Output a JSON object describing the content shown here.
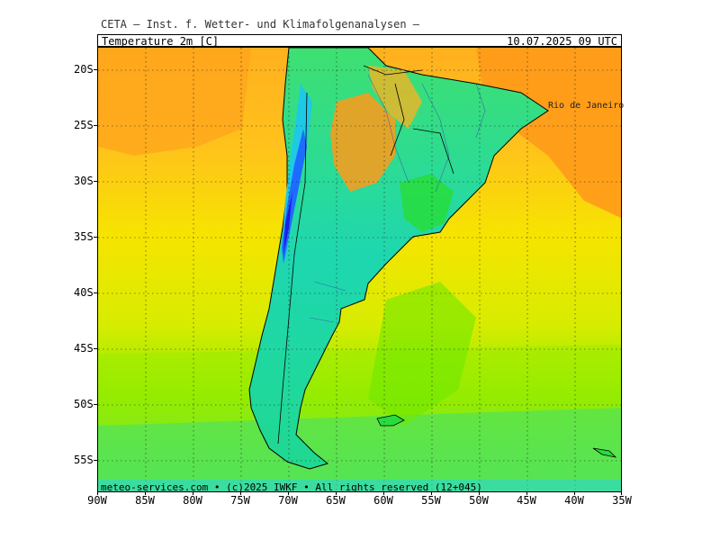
{
  "header": {
    "title": "CETA — Inst. f. Wetter- und Klimafolgenanalysen —"
  },
  "info_bar": {
    "parameter": "Temperature_2m_[C]",
    "datetime": "10.07.2025 09 UTC"
  },
  "map": {
    "latitude_labels": [
      "20S",
      "25S",
      "30S",
      "35S",
      "40S",
      "45S",
      "50S",
      "55S"
    ],
    "longitude_labels": [
      "90W",
      "85W",
      "80W",
      "75W",
      "70W",
      "65W",
      "60W",
      "55W",
      "50W",
      "45W",
      "40W",
      "35W"
    ],
    "city": "Rio de Janeiro",
    "colors": {
      "warm": "#ff9a1a",
      "orange": "#ffb01e",
      "yellow": "#f6e400",
      "yellow_green": "#c8ef00",
      "green": "#6fe800",
      "green2": "#28dc3c",
      "cyan": "#18d7a8",
      "cyan2": "#1ec9e6",
      "blue": "#1e6cff",
      "deep_blue": "#1b20e8"
    }
  },
  "footer": {
    "copyright": "meteo-services.com • (c)2025 IWKF • All rights reserved (12+045)"
  }
}
